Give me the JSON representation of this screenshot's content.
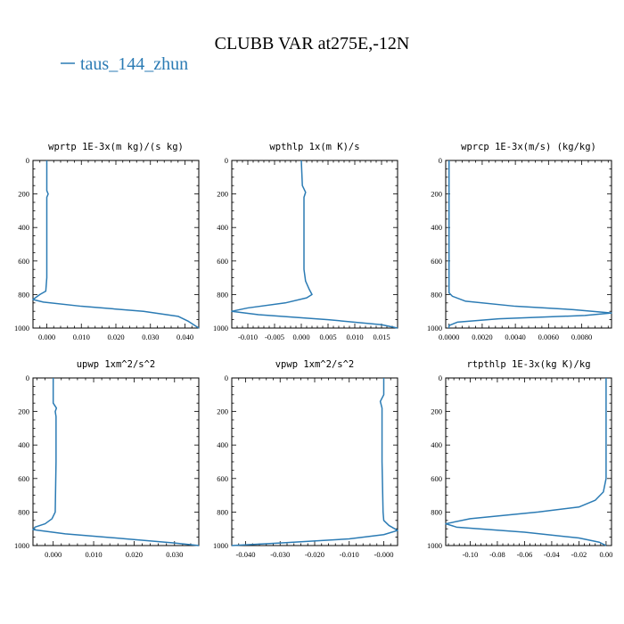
{
  "title": "CLUBB VAR at275E,-12N",
  "legend": {
    "label": "taus_144_zhun",
    "color": "#2b7bb4"
  },
  "line_color": "#2b7bb4",
  "chart_data": [
    {
      "type": "line",
      "title": "wprtp   1E-3x(m kg)/(s kg)",
      "xlim": [
        -0.004,
        0.044
      ],
      "ylim": [
        1000,
        0
      ],
      "xticks": [
        0.0,
        0.01,
        0.02,
        0.03,
        0.04
      ],
      "xtick_labels": [
        "0.000",
        "0.010",
        "0.020",
        "0.030",
        "0.040"
      ],
      "yticks": [
        0,
        200,
        400,
        600,
        800,
        1000
      ],
      "ytick_labels": [
        "0",
        "200",
        "400",
        "600",
        "800",
        "1000"
      ],
      "series": [
        {
          "x": [
            0.0,
            0.0,
            0.0004,
            0.0,
            0.0,
            0.0,
            -0.0003,
            -0.002,
            -0.004,
            -0.001,
            0.01,
            0.028,
            0.038,
            0.041,
            0.044
          ],
          "y": [
            0,
            180,
            200,
            220,
            500,
            700,
            780,
            800,
            830,
            845,
            870,
            900,
            930,
            960,
            1000
          ]
        }
      ]
    },
    {
      "type": "line",
      "title": "wpthlp   1x(m K)/s",
      "xlim": [
        -0.013,
        0.018
      ],
      "ylim": [
        1000,
        0
      ],
      "xticks": [
        -0.01,
        -0.005,
        0.0,
        0.005,
        0.01,
        0.015
      ],
      "xtick_labels": [
        "-0.010",
        "-0.005",
        "0.000",
        "0.005",
        "0.010",
        "0.015"
      ],
      "yticks": [
        0,
        200,
        400,
        600,
        800,
        1000
      ],
      "ytick_labels": [
        "0",
        "200",
        "400",
        "600",
        "800",
        "1000"
      ],
      "series": [
        {
          "x": [
            0.0,
            0.0002,
            0.0008,
            0.0005,
            0.0005,
            0.0005,
            0.0008,
            0.0015,
            0.002,
            0.001,
            -0.003,
            -0.01,
            -0.013,
            -0.008,
            0.005,
            0.015,
            0.018
          ],
          "y": [
            0,
            150,
            190,
            220,
            400,
            650,
            720,
            770,
            800,
            820,
            850,
            880,
            900,
            920,
            950,
            980,
            1000
          ]
        }
      ]
    },
    {
      "type": "line",
      "title": "wprcp   1E-3x(m/s) (kg/kg)",
      "xlim": [
        -0.0002,
        0.0098
      ],
      "ylim": [
        1000,
        0
      ],
      "xticks": [
        0.0,
        0.002,
        0.004,
        0.006,
        0.008
      ],
      "xtick_labels": [
        "0.0000",
        "0.0020",
        "0.0040",
        "0.0060",
        "0.0080"
      ],
      "yticks": [
        0,
        200,
        400,
        600,
        800,
        1000
      ],
      "ytick_labels": [
        "0",
        "200",
        "400",
        "600",
        "800",
        "1000"
      ],
      "series": [
        {
          "x": [
            0.0,
            0.0,
            0.0,
            0.0002,
            0.001,
            0.004,
            0.0075,
            0.0098,
            0.0082,
            0.003,
            0.0005,
            0.0,
            0.0
          ],
          "y": [
            0,
            700,
            790,
            810,
            840,
            870,
            890,
            910,
            925,
            945,
            965,
            985,
            1000
          ]
        }
      ]
    },
    {
      "type": "line",
      "title": "upwp   1xm^2/s^2",
      "xlim": [
        -0.005,
        0.036
      ],
      "ylim": [
        1000,
        0
      ],
      "xticks": [
        0.0,
        0.01,
        0.02,
        0.03
      ],
      "xtick_labels": [
        "0.000",
        "0.010",
        "0.020",
        "0.030"
      ],
      "yticks": [
        0,
        200,
        400,
        600,
        800,
        1000
      ],
      "ytick_labels": [
        "0",
        "200",
        "400",
        "600",
        "800",
        "1000"
      ],
      "series": [
        {
          "x": [
            0.0,
            0.0,
            0.0008,
            0.0005,
            0.0007,
            0.0007,
            0.0005,
            -0.0003,
            -0.002,
            -0.0045,
            -0.005,
            0.003,
            0.018,
            0.03,
            0.036
          ],
          "y": [
            0,
            150,
            180,
            200,
            230,
            500,
            800,
            840,
            870,
            890,
            905,
            930,
            960,
            985,
            1000
          ]
        }
      ]
    },
    {
      "type": "line",
      "title": "vpwp   1xm^2/s^2",
      "xlim": [
        -0.044,
        0.004
      ],
      "ylim": [
        1000,
        0
      ],
      "xticks": [
        -0.04,
        -0.03,
        -0.02,
        -0.01,
        0.0
      ],
      "xtick_labels": [
        "-0.040",
        "-0.030",
        "-0.020",
        "-0.010",
        "-0.000"
      ],
      "yticks": [
        0,
        200,
        400,
        600,
        800,
        1000
      ],
      "ytick_labels": [
        "0",
        "200",
        "400",
        "600",
        "800",
        "1000"
      ],
      "series": [
        {
          "x": [
            0.0,
            0.0,
            -0.001,
            -0.0005,
            -0.0005,
            -0.0005,
            -0.0002,
            0.0,
            0.0015,
            0.004,
            0.0,
            -0.01,
            -0.03,
            -0.044
          ],
          "y": [
            0,
            100,
            140,
            180,
            200,
            500,
            800,
            850,
            880,
            910,
            935,
            960,
            985,
            1000
          ]
        }
      ]
    },
    {
      "type": "line",
      "title": "rtpthlp   1E-3x(kg K)/kg",
      "xlim": [
        -0.118,
        0.004
      ],
      "ylim": [
        1000,
        0
      ],
      "xticks": [
        -0.1,
        -0.08,
        -0.06,
        -0.04,
        -0.02,
        0.0
      ],
      "xtick_labels": [
        "-0.10",
        "-0.08",
        "-0.06",
        "-0.04",
        "-0.02",
        "0.00"
      ],
      "yticks": [
        0,
        200,
        400,
        600,
        800,
        1000
      ],
      "ytick_labels": [
        "0",
        "200",
        "400",
        "600",
        "800",
        "1000"
      ],
      "series": [
        {
          "x": [
            0.0,
            0.0,
            -0.002,
            -0.008,
            -0.02,
            -0.05,
            -0.1,
            -0.118,
            -0.11,
            -0.06,
            -0.02,
            -0.005,
            0.0
          ],
          "y": [
            0,
            600,
            680,
            730,
            770,
            800,
            840,
            870,
            890,
            920,
            955,
            980,
            1000
          ]
        }
      ]
    }
  ]
}
